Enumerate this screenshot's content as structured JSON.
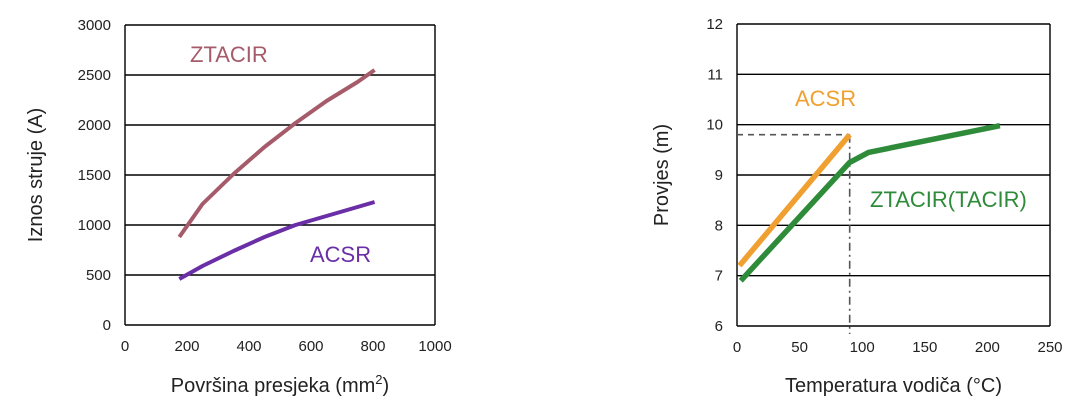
{
  "chart_data": [
    {
      "type": "line",
      "title": "",
      "xlabel": "Površina presjeka (mm",
      "xlabel_sup": "2",
      "xlabel_end": ")",
      "ylabel": "Iznos struje (A)",
      "xlim": [
        0,
        1000
      ],
      "ylim": [
        0,
        3000
      ],
      "xticks": [
        0,
        200,
        400,
        600,
        800,
        1000
      ],
      "yticks": [
        0,
        500,
        1000,
        1500,
        2000,
        2500,
        3000
      ],
      "grid": "horizontal",
      "legend": "none",
      "series": [
        {
          "name": "ZTACIR",
          "color": "#a65b6a",
          "x": [
            175,
            250,
            350,
            450,
            550,
            650,
            750,
            805
          ],
          "y": [
            880,
            1210,
            1510,
            1780,
            2020,
            2240,
            2430,
            2550
          ]
        },
        {
          "name": "ACSR",
          "color": "#6a2fa6",
          "x": [
            175,
            250,
            350,
            450,
            550,
            650,
            750,
            805
          ],
          "y": [
            460,
            590,
            740,
            880,
            1000,
            1090,
            1180,
            1230
          ]
        }
      ]
    },
    {
      "type": "line",
      "title": "",
      "xlabel": "Temperatura vodiča (°C)",
      "ylabel": "Provjes (m)",
      "xlim": [
        0,
        250
      ],
      "ylim": [
        6,
        12
      ],
      "xticks": [
        0,
        50,
        100,
        150,
        200,
        250
      ],
      "yticks": [
        6,
        7,
        8,
        9,
        10,
        11,
        12
      ],
      "grid": "horizontal",
      "legend": "none",
      "reference": {
        "x": 90,
        "y": 9.8,
        "color": "#555555"
      },
      "series": [
        {
          "name": "ACSR",
          "color": "#f0a030",
          "x": [
            2,
            90
          ],
          "y": [
            7.2,
            9.8
          ]
        },
        {
          "name": "ZTACIR(TACIR)",
          "color": "#2e8b3a",
          "x": [
            3,
            90,
            105,
            210
          ],
          "y": [
            6.9,
            9.25,
            9.45,
            9.98
          ]
        }
      ]
    }
  ]
}
